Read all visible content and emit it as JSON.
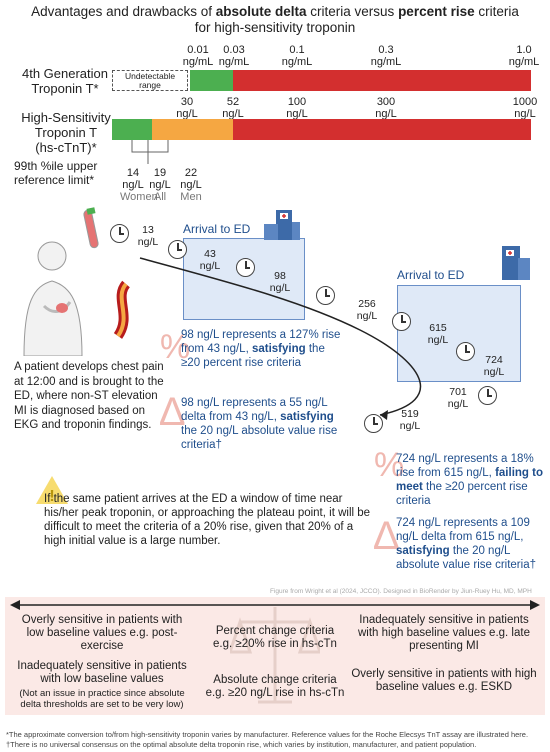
{
  "title": {
    "line1_a": "Advantages and drawbacks of ",
    "line1_b": "absolute delta",
    "line1_c": " criteria versus ",
    "line1_d": "percent rise",
    "line1_e": " criteria",
    "line2": "for high-sensitivity troponin"
  },
  "gen4": {
    "label_line1": "4th Generation",
    "label_line2": "Troponin T*",
    "undetectable_line1": "Undetectable",
    "undetectable_line2": "range",
    "ticks": [
      {
        "v": "0.01",
        "u": "ng/mL"
      },
      {
        "v": "0.03",
        "u": "ng/mL"
      },
      {
        "v": "0.1",
        "u": "ng/mL"
      },
      {
        "v": "0.3",
        "u": "ng/mL"
      },
      {
        "v": "1.0",
        "u": "ng/mL"
      }
    ]
  },
  "hs": {
    "label_line1": "High-Sensitivity",
    "label_line2": "Troponin T",
    "label_line3": "(hs-cTnT)*",
    "ticks": [
      {
        "v": "30",
        "u": "ng/L"
      },
      {
        "v": "52",
        "u": "ng/L"
      },
      {
        "v": "100",
        "u": "ng/L"
      },
      {
        "v": "300",
        "u": "ng/L"
      },
      {
        "v": "1000",
        "u": "ng/L"
      }
    ]
  },
  "ref": {
    "label_line1": "99th %ile upper",
    "label_line2": "reference limit*",
    "items": [
      {
        "v": "14",
        "u": "ng/L",
        "g": "Women"
      },
      {
        "v": "19",
        "u": "ng/L",
        "g": "All"
      },
      {
        "v": "22",
        "u": "ng/L",
        "g": "Men"
      }
    ]
  },
  "timeline1": {
    "arrival": "Arrival to ED",
    "values": [
      {
        "v": "13",
        "u": "ng/L"
      },
      {
        "v": "43",
        "u": "ng/L"
      },
      {
        "v": "98",
        "u": "ng/L"
      }
    ]
  },
  "timeline2": {
    "arrival": "Arrival to ED",
    "values": [
      {
        "v": "256",
        "u": "ng/L"
      },
      {
        "v": "615",
        "u": "ng/L"
      },
      {
        "v": "724",
        "u": "ng/L"
      },
      {
        "v": "701",
        "u": "ng/L"
      },
      {
        "v": "519",
        "u": "ng/L"
      }
    ]
  },
  "patient_text": "A patient develops chest pain at 12:00 and is brought to the ED, where non-ST elevation MI is diagnosed based on EKG and troponin findings.",
  "note1": {
    "a": "98 ng/L represents a 127% rise from 43 ng/L, ",
    "b": "satisfying",
    "c": " the ≥20 percent rise criteria"
  },
  "note2": {
    "a": "98 ng/L represents a 55 ng/L delta from 43 ng/L, ",
    "b": "satisfying",
    "c": " the 20 ng/L absolute value rise criteria†"
  },
  "note3": {
    "a": "724 ng/L represents a 18% rise from 615 ng/L, ",
    "b": "failing to meet",
    "c": " the ≥20 percent rise criteria"
  },
  "note4": {
    "a": "724 ng/L represents a 109 ng/L delta from 615 ng/L, ",
    "b": "satisfying",
    "c": " the 20 ng/L absolute value rise criteria†"
  },
  "warning_text": "If the same patient arrives at the ED a window of time near his/her peak troponin, or approaching the plateau point, it will be difficult to meet the criteria of a 20% rise, given that 20% of a high initial value is a large number.",
  "credit": "Figure from Wright et al (2024, JCCO). Designed in BioRender by Jiun-Ruey Hu, MD, MPH",
  "comparison": {
    "left_top": "Overly sensitive in patients with low baseline values e.g. post-exercise",
    "left_bottom": "Inadequately sensitive in patients with low baseline values",
    "left_bottom_note": "(Not an issue in practice since absolute delta thresholds are set to be very low)",
    "center_top_line1": "Percent change criteria",
    "center_top_line2": "e.g. ≥20% rise in hs-cTn",
    "center_bottom_line1": "Absolute change criteria",
    "center_bottom_line2": "e.g. ≥20 ng/L rise in hs-cTn",
    "right_top": "Inadequately sensitive in patients with high baseline values e.g. late presenting MI",
    "right_bottom": "Overly sensitive in patients with high baseline values e.g. ESKD"
  },
  "footnote1": "*The approximate conversion to/from high-sensitivity troponin varies by manufacturer. Reference values for the Roche Elecsys TnT assay are illustrated here.",
  "footnote2": "†There is no universal consensus on the optimal absolute delta troponin rise, which varies by institution, manufacturer, and patient population.",
  "colors": {
    "green": "#4caf50",
    "orange": "#f5a742",
    "red": "#d32f2f",
    "blue_text": "#1f4e8c",
    "box_fill": "#dfe9f7",
    "panel": "#fbe9e6"
  }
}
